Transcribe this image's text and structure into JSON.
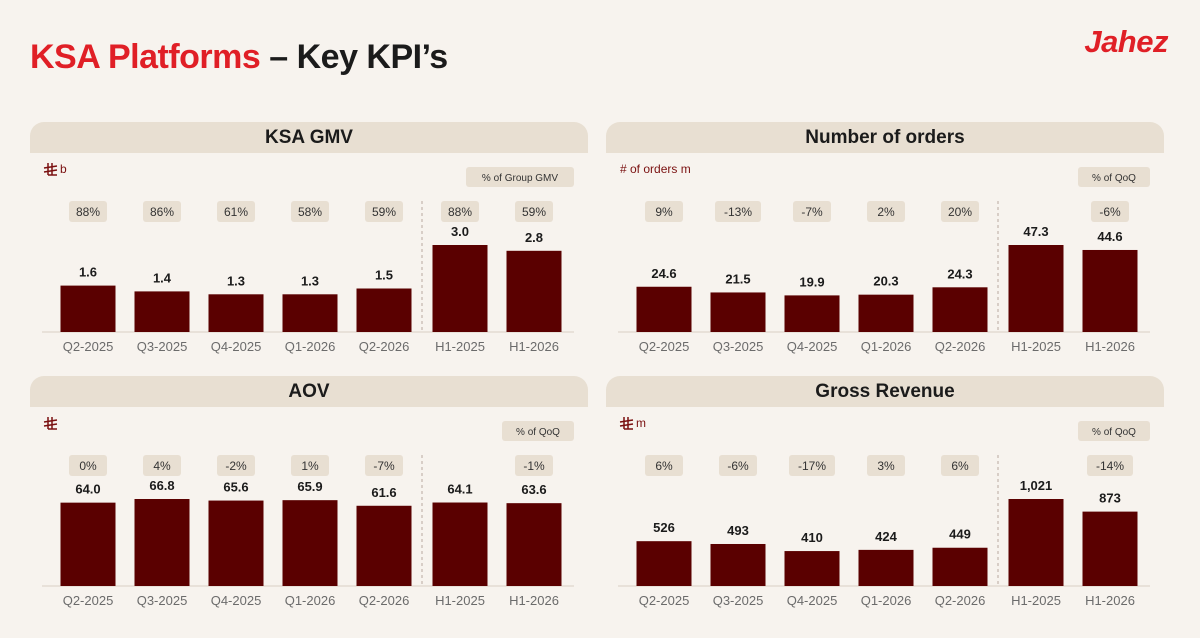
{
  "title": {
    "red": "KSA Platforms",
    "dark": "– Key KPI’s"
  },
  "brand": "Jahez",
  "colors": {
    "bar": "#5a0000",
    "accent": "#e01f26",
    "header_bg": "#e8dfd2",
    "pill_bg": "#e8dfd2"
  },
  "chart_data": [
    {
      "type": "bar",
      "title": "KSA GMV",
      "unit": "b",
      "unit_icon": "saudi-riyal-icon",
      "badge": "% of Group GMV",
      "categories": [
        "Q2-2025",
        "Q3-2025",
        "Q4-2025",
        "Q1-2026",
        "Q2-2026",
        "H1-2025",
        "H1-2026"
      ],
      "values": [
        1.6,
        1.4,
        1.3,
        1.3,
        1.5,
        3.0,
        2.8
      ],
      "value_labels": [
        "1.6",
        "1.4",
        "1.3",
        "1.3",
        "1.5",
        "3.0",
        "2.8"
      ],
      "pct_labels": [
        "88%",
        "86%",
        "61%",
        "58%",
        "59%",
        "88%",
        "59%"
      ]
    },
    {
      "type": "bar",
      "title": "Number of orders",
      "unit": "# of orders m",
      "unit_icon": "",
      "badge": "% of QoQ",
      "categories": [
        "Q2-2025",
        "Q3-2025",
        "Q4-2025",
        "Q1-2026",
        "Q2-2026",
        "H1-2025",
        "H1-2026"
      ],
      "values": [
        24.6,
        21.5,
        19.9,
        20.3,
        24.3,
        47.3,
        44.6
      ],
      "value_labels": [
        "24.6",
        "21.5",
        "19.9",
        "20.3",
        "24.3",
        "47.3",
        "44.6"
      ],
      "pct_labels": [
        "9%",
        "-13%",
        "-7%",
        "2%",
        "20%",
        "",
        "-6%"
      ]
    },
    {
      "type": "bar",
      "title": "AOV",
      "unit": "",
      "unit_icon": "saudi-riyal-icon",
      "badge": "% of QoQ",
      "categories": [
        "Q2-2025",
        "Q3-2025",
        "Q4-2025",
        "Q1-2026",
        "Q2-2026",
        "H1-2025",
        "H1-2026"
      ],
      "values": [
        64.0,
        66.8,
        65.6,
        65.9,
        61.6,
        64.1,
        63.6
      ],
      "value_labels": [
        "64.0",
        "66.8",
        "65.6",
        "65.9",
        "61.6",
        "64.1",
        "63.6"
      ],
      "pct_labels": [
        "0%",
        "4%",
        "-2%",
        "1%",
        "-7%",
        "",
        "-1%"
      ]
    },
    {
      "type": "bar",
      "title": "Gross Revenue",
      "unit": "m",
      "unit_icon": "saudi-riyal-icon",
      "badge": "% of QoQ",
      "categories": [
        "Q2-2025",
        "Q3-2025",
        "Q4-2025",
        "Q1-2026",
        "Q2-2026",
        "H1-2025",
        "H1-2026"
      ],
      "values": [
        526,
        493,
        410,
        424,
        449,
        1021,
        873
      ],
      "value_labels": [
        "526",
        "493",
        "410",
        "424",
        "449",
        "1,021",
        "873"
      ],
      "pct_labels": [
        "6%",
        "-6%",
        "-17%",
        "3%",
        "6%",
        "",
        "-14%"
      ]
    }
  ]
}
